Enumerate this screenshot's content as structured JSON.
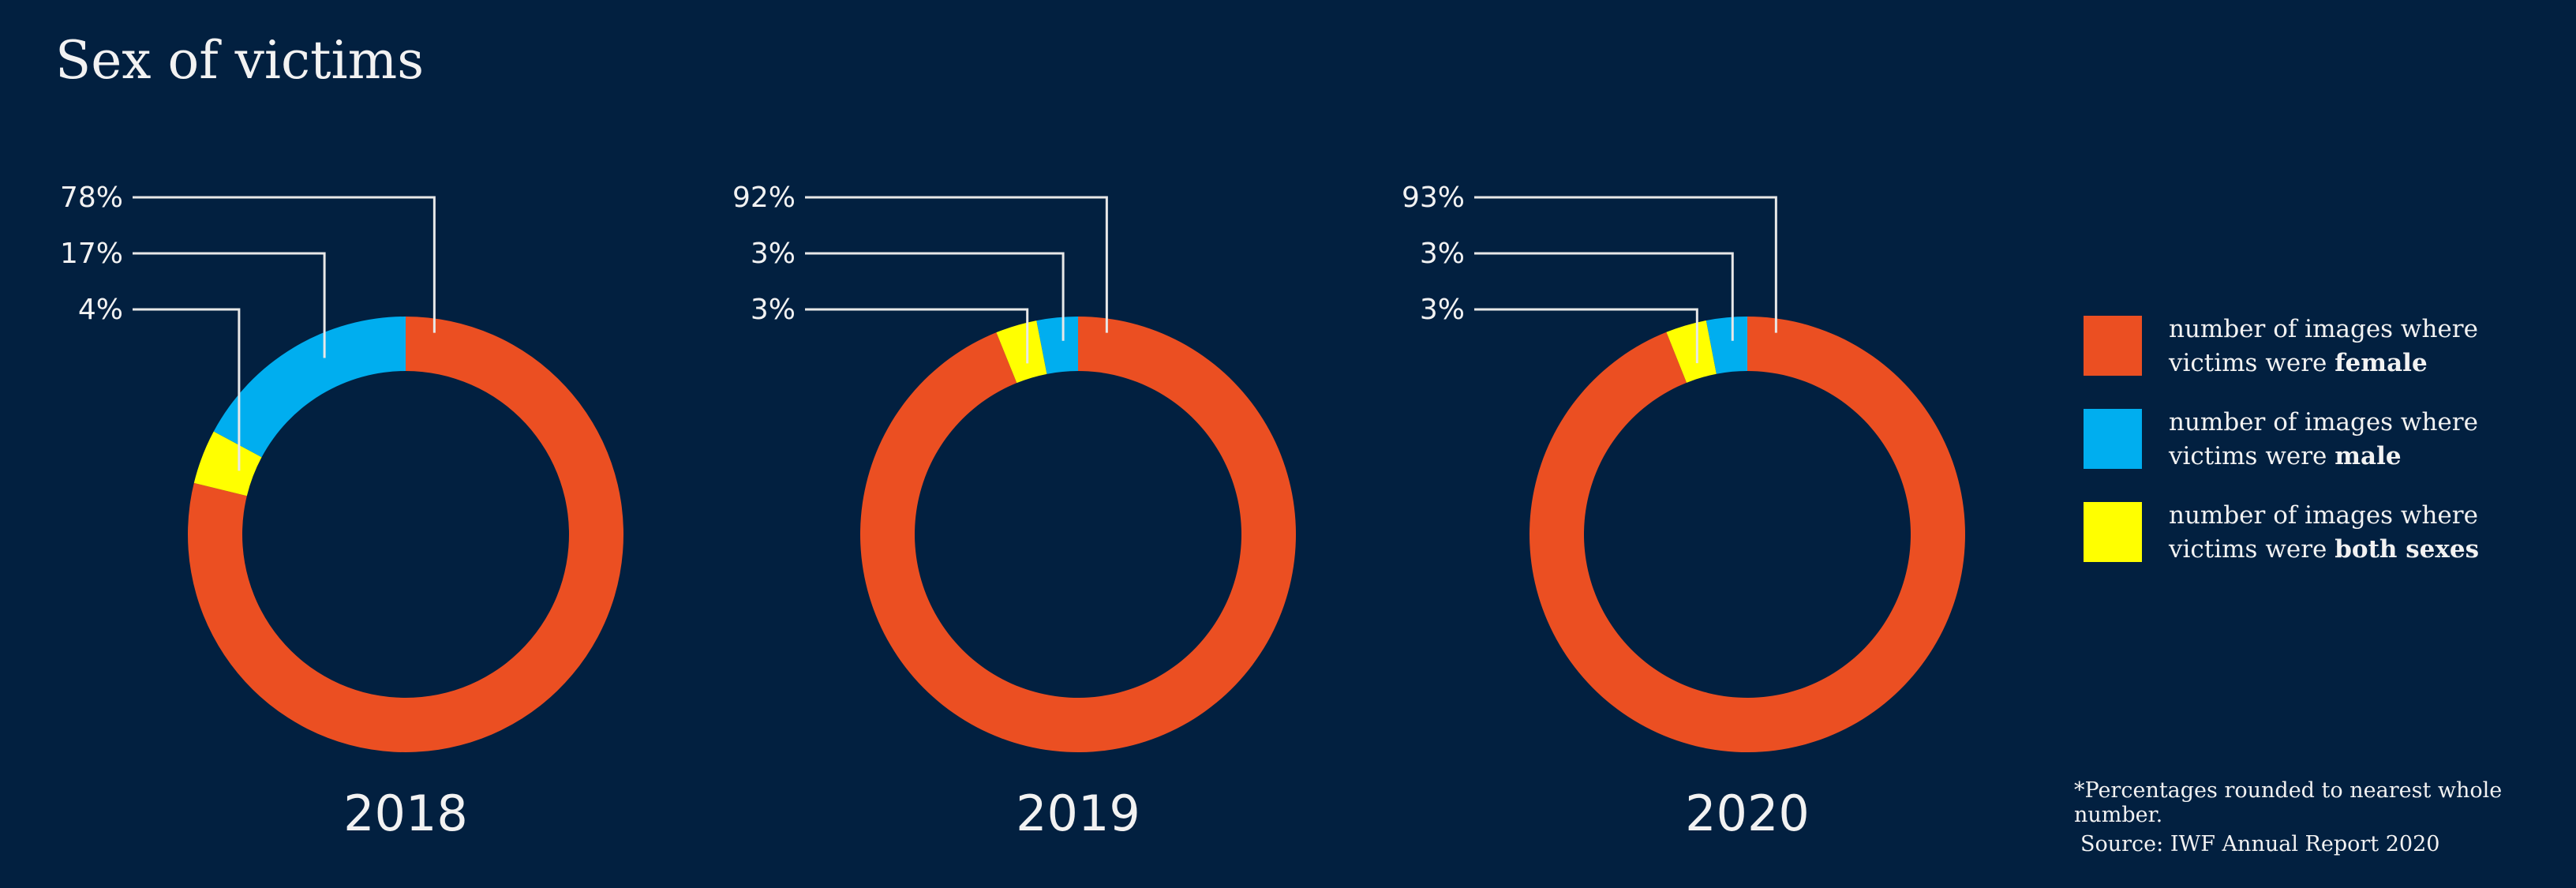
{
  "page": {
    "title": "Sex of victims",
    "background": "#022040"
  },
  "legend": {
    "items": [
      {
        "key": "female",
        "prefix": "number of images where",
        "line2": "victims were ",
        "bold": "female",
        "color": "#eb4f22"
      },
      {
        "key": "male",
        "prefix": "number of images where",
        "line2": "victims were ",
        "bold": "male",
        "color": "#00aeef"
      },
      {
        "key": "both",
        "prefix": "number of images where",
        "line2": "victims were ",
        "bold": "both sexes",
        "color": "#ffff00"
      }
    ]
  },
  "footnote": "*Percentages rounded to nearest whole number.",
  "source": "Source: IWF Annual Report 2020",
  "chart_data": {
    "type": "pie",
    "variant": "donut",
    "title": "Sex of victims",
    "series_names": [
      "female",
      "male",
      "both sexes"
    ],
    "colors": {
      "female": "#eb4f22",
      "male": "#00aeef",
      "both sexes": "#ffff00"
    },
    "charts": [
      {
        "label": "2018",
        "values": {
          "female": 78,
          "male": 17,
          "both sexes": 4
        },
        "labels": [
          "78%",
          "17%",
          "4%"
        ]
      },
      {
        "label": "2019",
        "values": {
          "female": 92,
          "male": 3,
          "both sexes": 3
        },
        "labels": [
          "92%",
          "3%",
          "3%"
        ]
      },
      {
        "label": "2020",
        "values": {
          "female": 93,
          "male": 3,
          "both sexes": 3
        },
        "labels": [
          "93%",
          "3%",
          "3%"
        ]
      }
    ],
    "legend_position": "right",
    "note": "Percentages rounded to nearest whole number"
  }
}
